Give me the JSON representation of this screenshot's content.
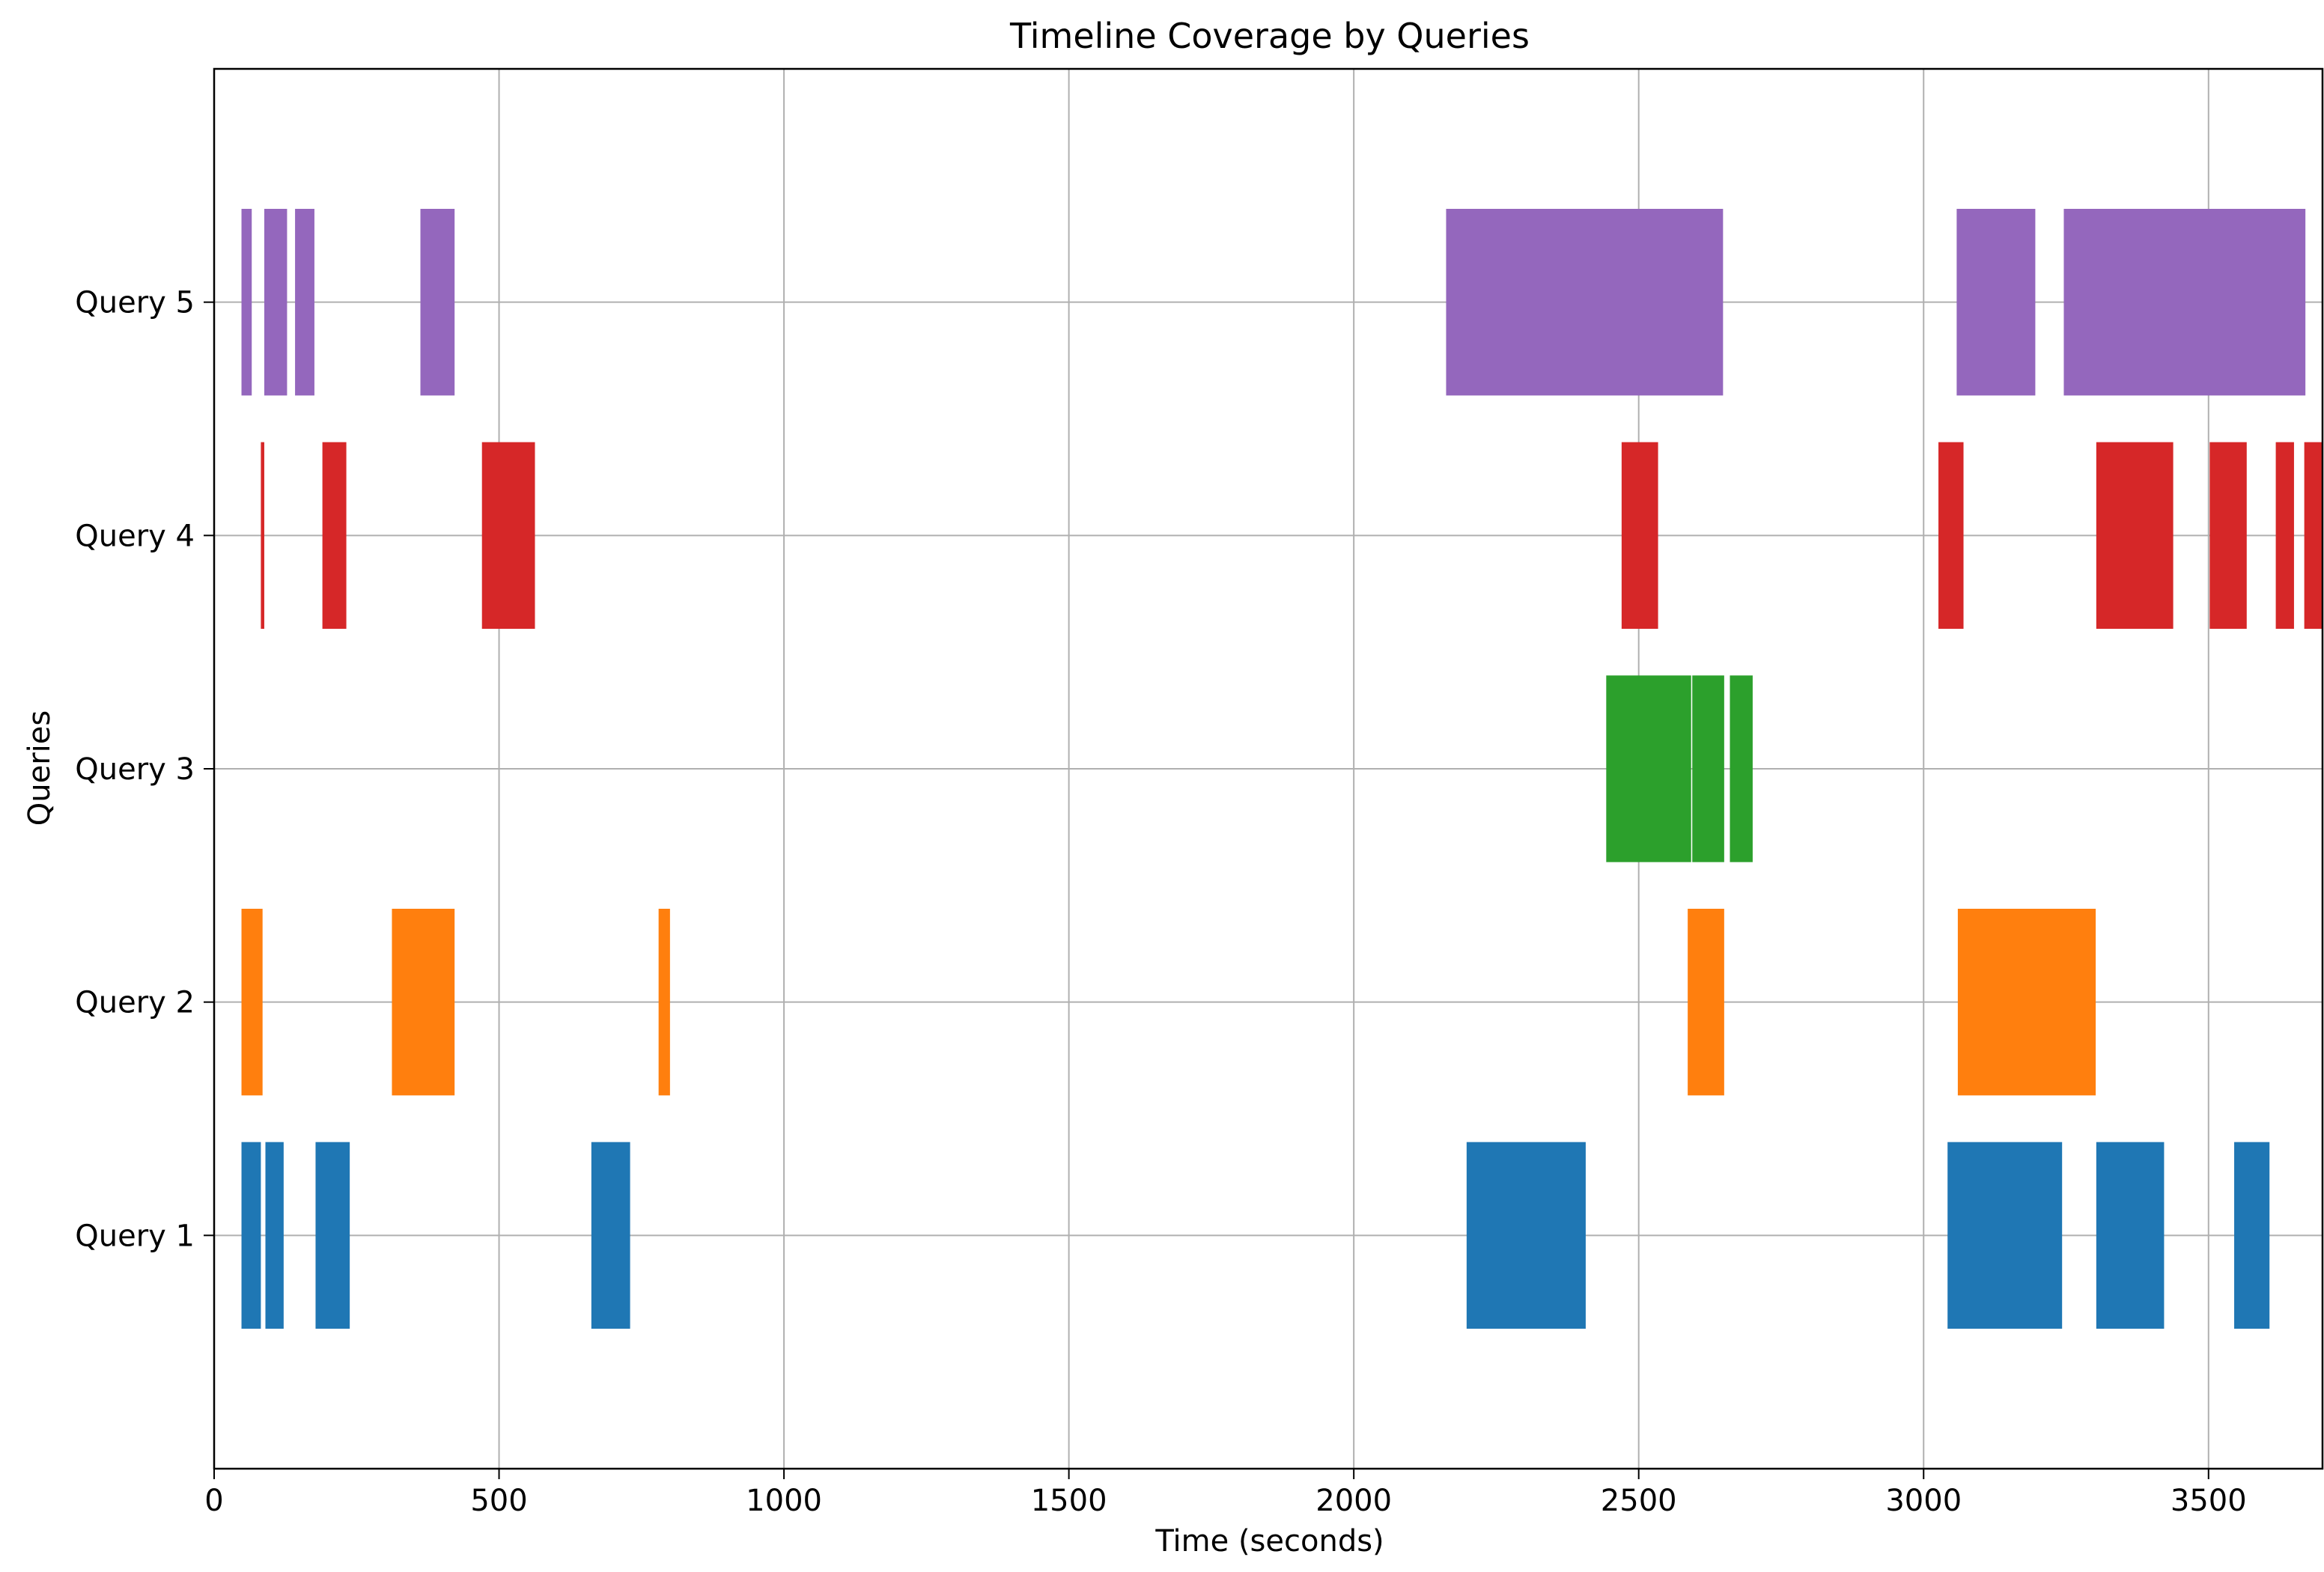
{
  "chart_data": {
    "type": "bar",
    "orientation": "horizontal-broken-bar",
    "title": "Timeline Coverage by Queries",
    "xlabel": "Time (seconds)",
    "ylabel": "Queries",
    "xlim": [
      0,
      3700
    ],
    "ylim": [
      0,
      6
    ],
    "xticks": [
      0,
      500,
      1000,
      1500,
      2000,
      2500,
      3000,
      3500
    ],
    "xtick_labels": [
      "0",
      "500",
      "1000",
      "1500",
      "2000",
      "2500",
      "3000",
      "3500"
    ],
    "grid": true,
    "categories": [
      "Query 1",
      "Query 2",
      "Query 3",
      "Query 4",
      "Query 5"
    ],
    "series": [
      {
        "category": "Query 1",
        "color": "#1f77b4",
        "intervals": [
          [
            48,
            82
          ],
          [
            90,
            122
          ],
          [
            178,
            238
          ],
          [
            662,
            730
          ],
          [
            2198,
            2407
          ],
          [
            3042,
            3243
          ],
          [
            3303,
            3422
          ],
          [
            3545,
            3607
          ]
        ]
      },
      {
        "category": "Query 2",
        "color": "#ff7f0e",
        "intervals": [
          [
            48,
            85
          ],
          [
            312,
            422
          ],
          [
            780,
            800
          ],
          [
            2586,
            2650
          ],
          [
            3060,
            3302
          ]
        ]
      },
      {
        "category": "Query 3",
        "color": "#2ca02c",
        "intervals": [
          [
            2443,
            2592
          ],
          [
            2594,
            2650
          ],
          [
            2660,
            2700
          ]
        ]
      },
      {
        "category": "Query 4",
        "color": "#d62728",
        "intervals": [
          [
            82,
            88
          ],
          [
            190,
            232
          ],
          [
            470,
            563
          ],
          [
            2470,
            2534
          ],
          [
            3026,
            3070
          ],
          [
            3303,
            3438
          ],
          [
            3502,
            3567
          ],
          [
            3618,
            3650
          ],
          [
            3668,
            3700
          ]
        ]
      },
      {
        "category": "Query 5",
        "color": "#9467bd",
        "intervals": [
          [
            48,
            66
          ],
          [
            88,
            128
          ],
          [
            142,
            176
          ],
          [
            362,
            422
          ],
          [
            2162,
            2648
          ],
          [
            3058,
            3196
          ],
          [
            3246,
            3670
          ]
        ]
      }
    ]
  }
}
